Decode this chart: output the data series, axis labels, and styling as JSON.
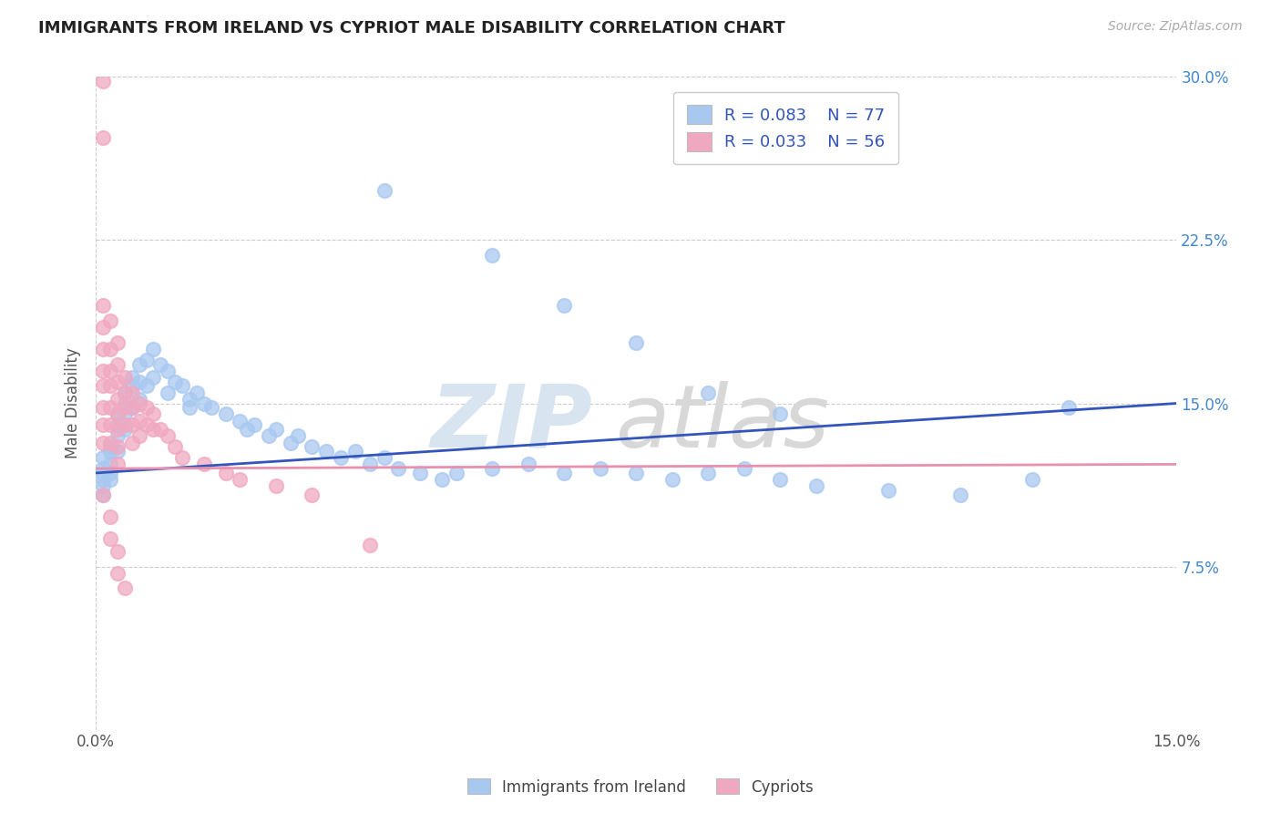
{
  "title": "IMMIGRANTS FROM IRELAND VS CYPRIOT MALE DISABILITY CORRELATION CHART",
  "source_text": "Source: ZipAtlas.com",
  "ylabel": "Male Disability",
  "legend_label_1": "Immigrants from Ireland",
  "legend_label_2": "Cypriots",
  "R1": "R = 0.083",
  "N1": "N = 77",
  "R2": "R = 0.033",
  "N2": "N = 56",
  "color1": "#a8c8f0",
  "color2": "#f0a8c0",
  "line_color1": "#3355bb",
  "line_color2": "#e890b0",
  "xlim": [
    0.0,
    0.15
  ],
  "ylim": [
    0.0,
    0.3
  ],
  "trendline1_x": [
    0.0,
    0.15
  ],
  "trendline1_y": [
    0.118,
    0.15
  ],
  "trendline2_x": [
    0.0,
    0.15
  ],
  "trendline2_y": [
    0.12,
    0.122
  ],
  "scatter1_x": [
    0.001,
    0.001,
    0.001,
    0.001,
    0.001,
    0.001,
    0.002,
    0.002,
    0.002,
    0.002,
    0.002,
    0.003,
    0.003,
    0.003,
    0.003,
    0.004,
    0.004,
    0.004,
    0.004,
    0.005,
    0.005,
    0.005,
    0.006,
    0.006,
    0.006,
    0.007,
    0.007,
    0.008,
    0.008,
    0.009,
    0.01,
    0.01,
    0.011,
    0.012,
    0.013,
    0.013,
    0.014,
    0.015,
    0.016,
    0.018,
    0.02,
    0.021,
    0.022,
    0.024,
    0.025,
    0.027,
    0.028,
    0.03,
    0.032,
    0.034,
    0.036,
    0.038,
    0.04,
    0.042,
    0.045,
    0.048,
    0.05,
    0.055,
    0.06,
    0.065,
    0.07,
    0.075,
    0.08,
    0.085,
    0.09,
    0.095,
    0.1,
    0.11,
    0.12,
    0.13,
    0.04,
    0.055,
    0.065,
    0.075,
    0.085,
    0.095,
    0.135
  ],
  "scatter1_y": [
    0.125,
    0.12,
    0.118,
    0.115,
    0.112,
    0.108,
    0.13,
    0.128,
    0.122,
    0.118,
    0.115,
    0.145,
    0.14,
    0.135,
    0.128,
    0.155,
    0.15,
    0.145,
    0.138,
    0.162,
    0.158,
    0.148,
    0.168,
    0.16,
    0.152,
    0.17,
    0.158,
    0.175,
    0.162,
    0.168,
    0.165,
    0.155,
    0.16,
    0.158,
    0.152,
    0.148,
    0.155,
    0.15,
    0.148,
    0.145,
    0.142,
    0.138,
    0.14,
    0.135,
    0.138,
    0.132,
    0.135,
    0.13,
    0.128,
    0.125,
    0.128,
    0.122,
    0.125,
    0.12,
    0.118,
    0.115,
    0.118,
    0.12,
    0.122,
    0.118,
    0.12,
    0.118,
    0.115,
    0.118,
    0.12,
    0.115,
    0.112,
    0.11,
    0.108,
    0.115,
    0.248,
    0.218,
    0.195,
    0.178,
    0.155,
    0.145,
    0.148
  ],
  "scatter2_x": [
    0.001,
    0.001,
    0.001,
    0.001,
    0.001,
    0.001,
    0.001,
    0.001,
    0.001,
    0.001,
    0.002,
    0.002,
    0.002,
    0.002,
    0.002,
    0.002,
    0.002,
    0.003,
    0.003,
    0.003,
    0.003,
    0.003,
    0.003,
    0.003,
    0.003,
    0.004,
    0.004,
    0.004,
    0.004,
    0.005,
    0.005,
    0.005,
    0.005,
    0.006,
    0.006,
    0.006,
    0.007,
    0.007,
    0.008,
    0.008,
    0.009,
    0.01,
    0.011,
    0.012,
    0.015,
    0.018,
    0.02,
    0.025,
    0.03,
    0.038,
    0.001,
    0.002,
    0.002,
    0.003,
    0.003,
    0.004
  ],
  "scatter2_y": [
    0.298,
    0.272,
    0.195,
    0.185,
    0.175,
    0.165,
    0.158,
    0.148,
    0.14,
    0.132,
    0.188,
    0.175,
    0.165,
    0.158,
    0.148,
    0.14,
    0.132,
    0.178,
    0.168,
    0.16,
    0.152,
    0.145,
    0.138,
    0.13,
    0.122,
    0.162,
    0.155,
    0.148,
    0.14,
    0.155,
    0.148,
    0.14,
    0.132,
    0.15,
    0.142,
    0.135,
    0.148,
    0.14,
    0.145,
    0.138,
    0.138,
    0.135,
    0.13,
    0.125,
    0.122,
    0.118,
    0.115,
    0.112,
    0.108,
    0.085,
    0.108,
    0.098,
    0.088,
    0.082,
    0.072,
    0.065
  ],
  "watermark_zip": "ZIP",
  "watermark_atlas": "atlas"
}
